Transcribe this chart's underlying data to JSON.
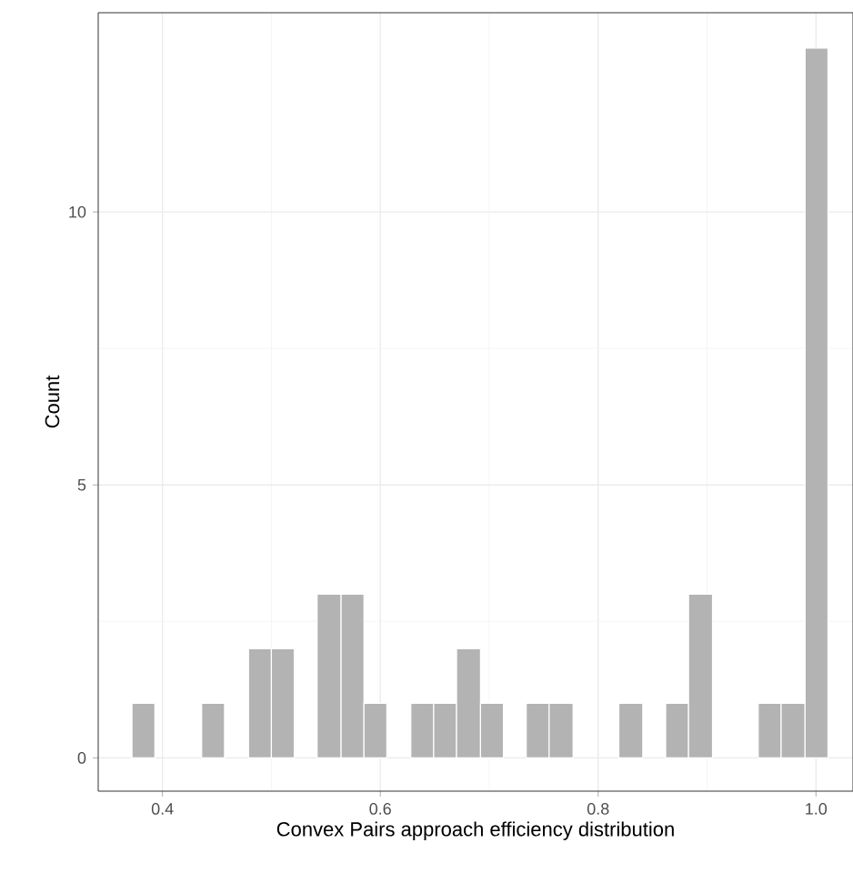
{
  "chart_data": {
    "type": "histogram",
    "xlabel": "Convex Pairs approach efficiency distribution",
    "ylabel": "Count",
    "bins": [
      0.372,
      0.393,
      0.436,
      0.457,
      0.479,
      0.5,
      0.521,
      0.542,
      0.564,
      0.585,
      0.606,
      0.628,
      0.649,
      0.67,
      0.692,
      0.713,
      0.734,
      0.755,
      0.777,
      0.819,
      0.841,
      0.862,
      0.883,
      0.905,
      0.947,
      0.968,
      0.99,
      1.011
    ],
    "values": [
      1,
      0,
      1,
      0,
      2,
      2,
      0,
      3,
      3,
      1,
      0,
      1,
      1,
      2,
      1,
      0,
      1,
      1,
      0,
      1,
      0,
      1,
      3,
      0,
      1,
      1,
      13
    ],
    "color": "#b3b3b3",
    "xlim": [
      0.341,
      1.034
    ],
    "ylim": [
      -0.61,
      13.65
    ],
    "xticks": [
      0.4,
      0.6,
      0.8,
      {
        "value": 1.0,
        "label": "1.0"
      }
    ],
    "yticks": [
      0,
      5,
      10
    ],
    "grid": true
  }
}
